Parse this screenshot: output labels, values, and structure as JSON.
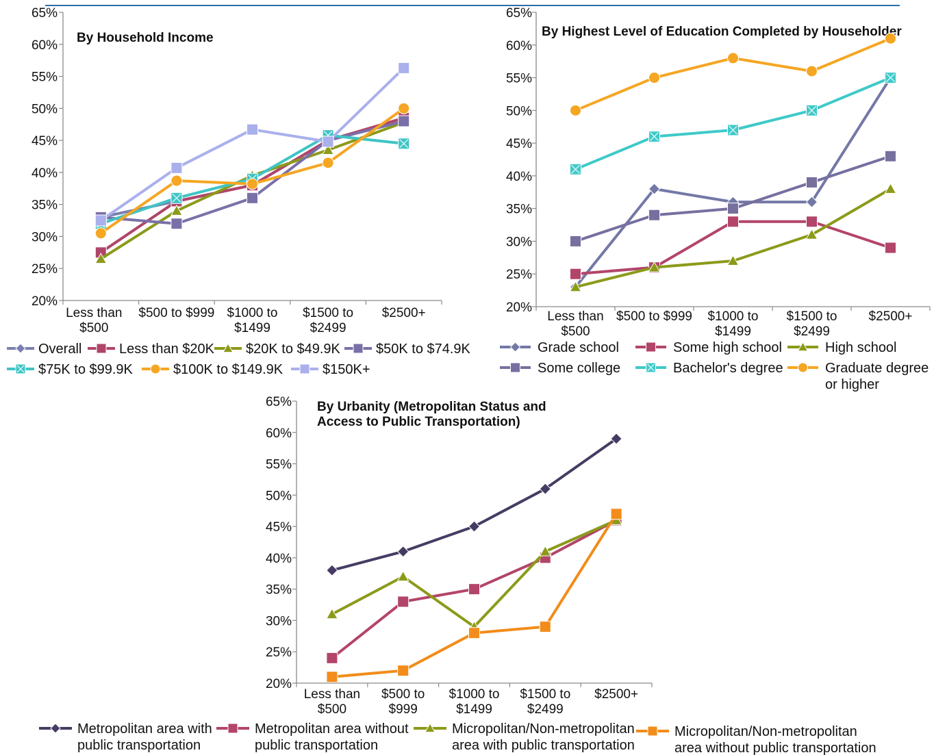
{
  "chart_data": [
    {
      "type": "line",
      "title": "By Household Income",
      "categories": [
        "Less than\n$500",
        "$500 to $999",
        "$1000 to\n$1499",
        "$1500 to\n$2499",
        "$2500+"
      ],
      "ylim": [
        0.2,
        0.65
      ],
      "yticks": [
        "20%",
        "25%",
        "30%",
        "35%",
        "40%",
        "45%",
        "50%",
        "55%",
        "60%",
        "65%"
      ],
      "legend_position": "bottom",
      "series": [
        {
          "name": "Overall",
          "color": "#7b7fb0",
          "marker": "diamond",
          "values": [
            0.33,
            0.355,
            0.38,
            0.45,
            0.48
          ]
        },
        {
          "name": "Less than $20K",
          "color": "#b0456a",
          "marker": "square",
          "values": [
            0.275,
            0.355,
            0.38,
            0.45,
            0.485
          ]
        },
        {
          "name": "$20K to $49.9K",
          "color": "#8c9a1a",
          "marker": "triangle",
          "values": [
            0.265,
            0.34,
            0.395,
            0.435,
            0.478
          ]
        },
        {
          "name": "$50K to $74.9K",
          "color": "#7a70a8",
          "marker": "square",
          "values": [
            0.33,
            0.32,
            0.36,
            0.45,
            0.48
          ]
        },
        {
          "name": "$75K to $99.9K",
          "color": "#3fc4c4",
          "marker": "square-x",
          "values": [
            0.32,
            0.36,
            0.39,
            0.458,
            0.445
          ]
        },
        {
          "name": "$100K to $149.9K",
          "color": "#f5a623",
          "marker": "circle",
          "values": [
            0.305,
            0.387,
            0.382,
            0.415,
            0.5
          ]
        },
        {
          "name": "$150K+",
          "color": "#aab0ec",
          "marker": "square",
          "values": [
            0.325,
            0.407,
            0.467,
            0.448,
            0.563
          ]
        }
      ]
    },
    {
      "type": "line",
      "title": "By Highest Level of Education Completed by Householder",
      "categories": [
        "Less than\n$500",
        "$500 to $999",
        "$1000 to\n$1499",
        "$1500 to\n$2499",
        "$2500+"
      ],
      "ylim": [
        0.2,
        0.65
      ],
      "yticks": [
        "20%",
        "25%",
        "30%",
        "35%",
        "40%",
        "45%",
        "50%",
        "55%",
        "60%",
        "65%"
      ],
      "legend_position": "bottom",
      "series": [
        {
          "name": "Grade school",
          "color": "#7378a6",
          "marker": "diamond",
          "values": [
            0.23,
            0.38,
            0.36,
            0.36,
            0.55
          ]
        },
        {
          "name": "Some high school",
          "color": "#b3456a",
          "marker": "square",
          "values": [
            0.25,
            0.26,
            0.33,
            0.33,
            0.29
          ]
        },
        {
          "name": "High school",
          "color": "#8c9a1a",
          "marker": "triangle",
          "values": [
            0.23,
            0.26,
            0.27,
            0.31,
            0.38
          ]
        },
        {
          "name": "Some college",
          "color": "#76709f",
          "marker": "square",
          "values": [
            0.3,
            0.34,
            0.35,
            0.39,
            0.43
          ]
        },
        {
          "name": "Bachelor's degree",
          "color": "#3fc9c9",
          "marker": "square-x",
          "values": [
            0.41,
            0.46,
            0.47,
            0.5,
            0.55
          ]
        },
        {
          "name": "Graduate degree\nor higher",
          "color": "#f5a623",
          "marker": "circle",
          "values": [
            0.5,
            0.55,
            0.58,
            0.56,
            0.61
          ]
        }
      ]
    },
    {
      "type": "line",
      "title": "By Urbanity (Metropolitan Status and\nAccess to Public Transportation)",
      "categories": [
        "Less than\n$500",
        "$500 to\n$999",
        "$1000 to\n$1499",
        "$1500 to\n$2499",
        "$2500+"
      ],
      "ylim": [
        0.2,
        0.65
      ],
      "yticks": [
        "20%",
        "25%",
        "30%",
        "35%",
        "40%",
        "45%",
        "50%",
        "55%",
        "60%",
        "65%"
      ],
      "legend_position": "bottom",
      "series": [
        {
          "name": "Metropolitan area with\npublic transportation",
          "color": "#463c63",
          "marker": "diamond",
          "values": [
            0.38,
            0.41,
            0.45,
            0.51,
            0.59
          ]
        },
        {
          "name": "Metropolitan area without\npublic transportation",
          "color": "#b3456a",
          "marker": "square",
          "values": [
            0.24,
            0.33,
            0.35,
            0.4,
            0.46
          ]
        },
        {
          "name": "Micropolitan/Non-metropolitan\narea with public transportation",
          "color": "#8c9a1a",
          "marker": "triangle",
          "values": [
            0.31,
            0.37,
            0.29,
            0.41,
            0.46
          ]
        },
        {
          "name": "Micropolitan/Non-metropolitan\narea without public transportation",
          "color": "#f28c1a",
          "marker": "square",
          "values": [
            0.21,
            0.22,
            0.28,
            0.29,
            0.47
          ]
        }
      ]
    }
  ]
}
